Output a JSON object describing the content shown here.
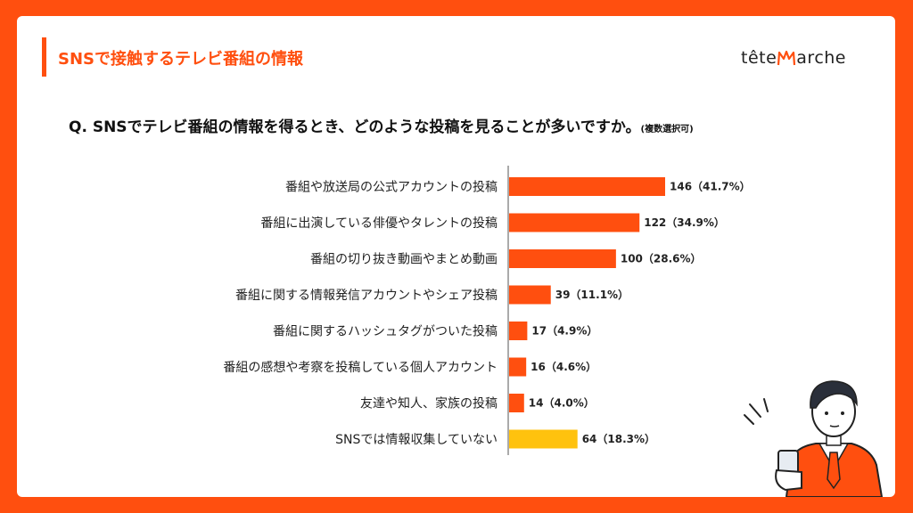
{
  "header": {
    "title": "SNSで接触するテレビ番組の情報",
    "logo_text_left": "tête",
    "logo_text_right": "arche"
  },
  "question": {
    "text": "Q. SNSでテレビ番組の情報を得るとき、どのような投稿を見ることが多いですか。",
    "note": "(複数選択可)"
  },
  "colors": {
    "brand": "#ff4f0f",
    "highlight": "#ffc20e"
  },
  "chart_data": {
    "type": "bar",
    "orientation": "horizontal",
    "categories": [
      "番組や放送局の公式アカウントの投稿",
      "番組に出演している俳優やタレントの投稿",
      "番組の切り抜き動画やまとめ動画",
      "番組に関する情報発信アカウントやシェア投稿",
      "番組に関するハッシュタグがついた投稿",
      "番組の感想や考察を投稿している個人アカウント",
      "友達や知人、家族の投稿",
      "SNSでは情報収集していない"
    ],
    "values": [
      146,
      122,
      100,
      39,
      17,
      16,
      14,
      64
    ],
    "data_labels": [
      "146（41.7%）",
      "122（34.9%）",
      "100（28.6%）",
      "39（11.1%）",
      "17（4.9%）",
      "16（4.6%）",
      "14（4.0%）",
      "64（18.3%）"
    ],
    "bar_colors": [
      "#ff4f0f",
      "#ff4f0f",
      "#ff4f0f",
      "#ff4f0f",
      "#ff4f0f",
      "#ff4f0f",
      "#ff4f0f",
      "#ffc20e"
    ],
    "xlim": [
      0,
      146
    ]
  }
}
